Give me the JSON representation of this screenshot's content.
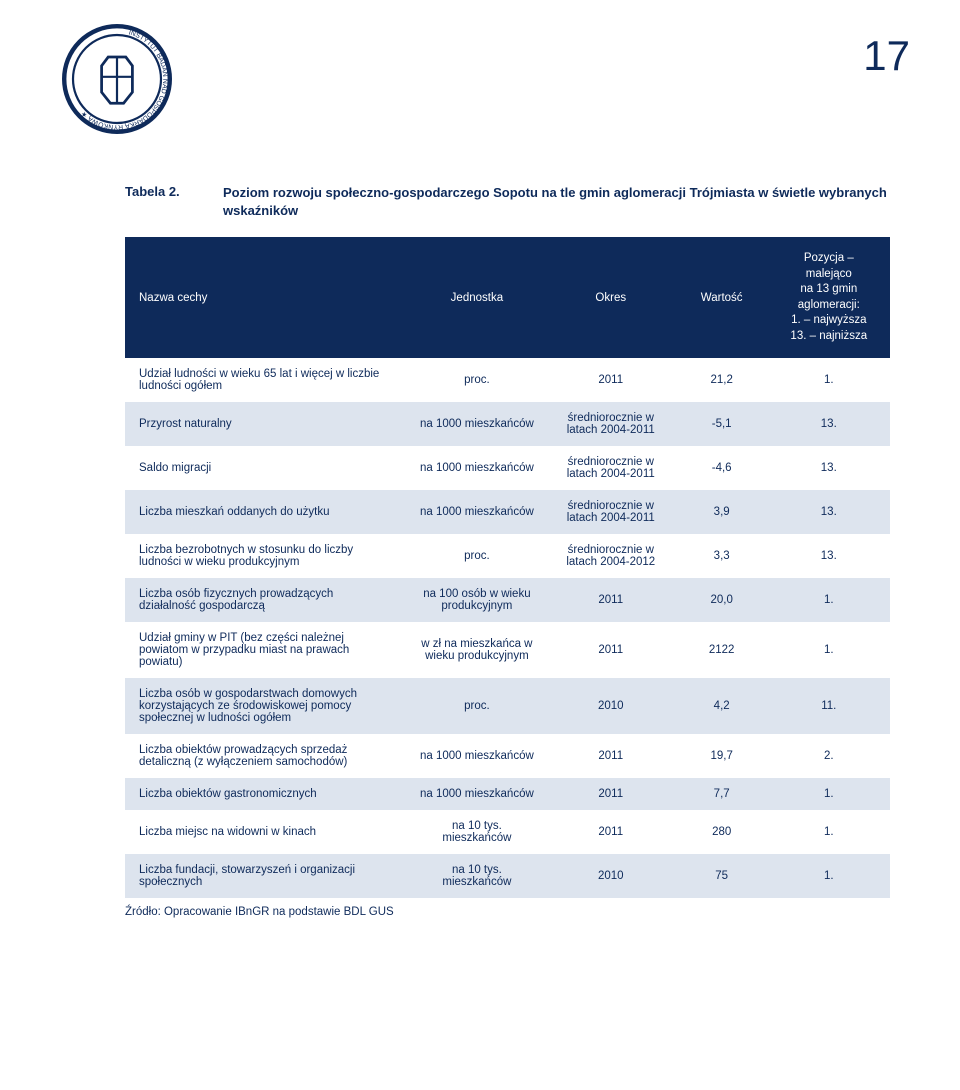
{
  "page_number": "17",
  "caption_label": "Tabela 2.",
  "caption_text": "Poziom rozwoju społeczno-gospodarczego Sopotu na tle gmin aglomeracji Trójmiasta w świetle wybranych wskaźników",
  "source": "Źródło: Opracowanie IBnGR na podstawie BDL GUS",
  "header": {
    "name": "Nazwa cechy",
    "unit": "Jednostka",
    "period": "Okres",
    "value": "Wartość",
    "rank_l1": "Pozycja –",
    "rank_l2": "malejąco",
    "rank_l3": "na 13 gmin",
    "rank_l4": "aglomeracji:",
    "rank_l5": "1. – najwyższa",
    "rank_l6": "13. – najniższa"
  },
  "rows": [
    {
      "name": "Udział ludności w wieku 65 lat i więcej w liczbie ludności ogółem",
      "unit": "proc.",
      "period": "2011",
      "value": "21,2",
      "rank": "1."
    },
    {
      "name": "Przyrost naturalny",
      "unit": "na 1000 mieszkańców",
      "period": "średniorocznie w latach 2004-2011",
      "value": "-5,1",
      "rank": "13."
    },
    {
      "name": "Saldo migracji",
      "unit": "na 1000 mieszkańców",
      "period": "średniorocznie w latach 2004-2011",
      "value": "-4,6",
      "rank": "13."
    },
    {
      "name": "Liczba mieszkań oddanych do użytku",
      "unit": "na 1000 mieszkańców",
      "period": "średniorocznie w latach 2004-2011",
      "value": "3,9",
      "rank": "13."
    },
    {
      "name": "Liczba bezrobotnych w stosunku do liczby ludności w wieku produkcyjnym",
      "unit": "proc.",
      "period": "średniorocznie w latach 2004-2012",
      "value": "3,3",
      "rank": "13."
    },
    {
      "name": "Liczba osób fizycznych prowadzących działalność gospodarczą",
      "unit": "na 100 osób w wieku produkcyjnym",
      "period": "2011",
      "value": "20,0",
      "rank": "1."
    },
    {
      "name": "Udział gminy w PIT (bez części należnej powiatom w przypadku miast na prawach powiatu)",
      "unit": "w zł na mieszkańca w wieku produkcyjnym",
      "period": "2011",
      "value": "2122",
      "rank": "1."
    },
    {
      "name": "Liczba osób w gospodarstwach domowych korzystających ze środowiskowej pomocy społecznej w ludności ogółem",
      "unit": "proc.",
      "period": "2010",
      "value": "4,2",
      "rank": "11."
    },
    {
      "name": "Liczba obiektów prowadzących sprzedaż detaliczną (z wyłączeniem samochodów)",
      "unit": "na 1000 mieszkańców",
      "period": "2011",
      "value": "19,7",
      "rank": "2."
    },
    {
      "name": "Liczba obiektów gastronomicznych",
      "unit": "na 1000 mieszkańców",
      "period": "2011",
      "value": "7,7",
      "rank": "1."
    },
    {
      "name": "Liczba miejsc na widowni w kinach",
      "unit": "na 10 tys. mieszkańców",
      "period": "2011",
      "value": "280",
      "rank": "1."
    },
    {
      "name": "Liczba fundacji, stowarzyszeń i organizacji społecznych",
      "unit": "na 10 tys. mieszkańców",
      "period": "2010",
      "value": "75",
      "rank": "1."
    }
  ],
  "colors": {
    "brand": "#0e2a5a",
    "row_even": "#dde4ee",
    "row_odd": "#ffffff",
    "text": "#0e2a5a",
    "header_text": "#ffffff"
  },
  "font_sizes": {
    "page_number": 42,
    "caption": 13,
    "table": 11.5,
    "source": 11.5
  }
}
